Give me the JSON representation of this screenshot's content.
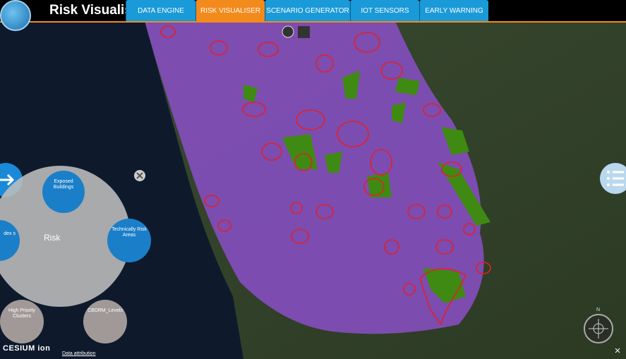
{
  "header": {
    "title": "Risk Visualis",
    "tabs": [
      "DATA ENGINE",
      "RISK VISUALISER",
      "SCENARIO GENERATOR",
      "IOT SENSORS",
      "EARLY WARNING"
    ]
  },
  "radial_menu": {
    "center": "Risk",
    "items": [
      "Exposed Buildings",
      "Technically Risk Areas",
      "dex s",
      "High Priority Clusters",
      "CBDRM_Levels"
    ]
  },
  "footer": {
    "brand": "CESIUM ion",
    "attribution": "Data attribution"
  },
  "compass": "N"
}
